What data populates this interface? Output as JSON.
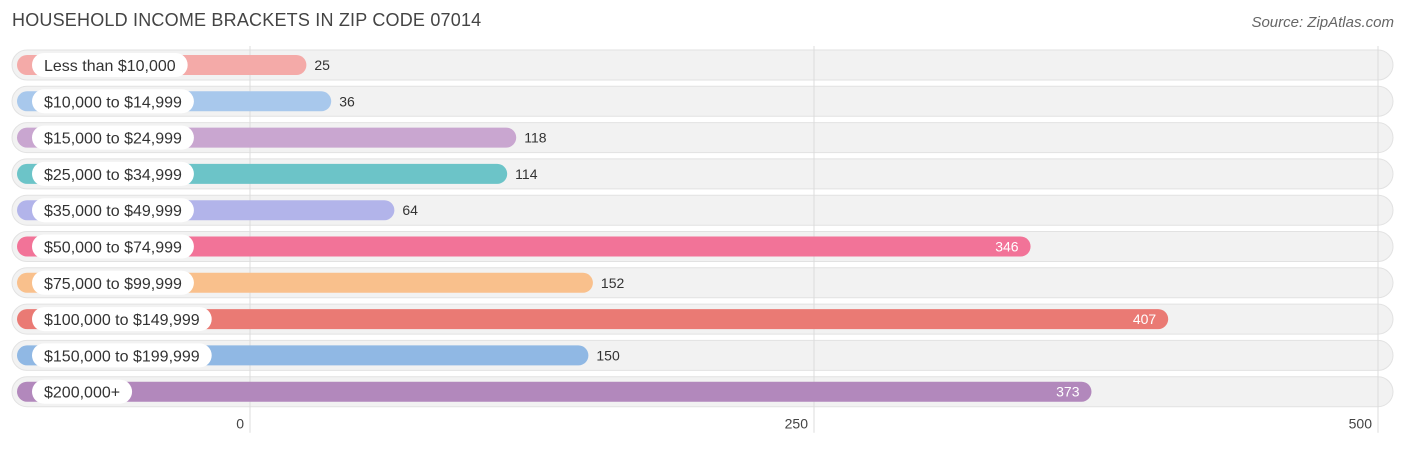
{
  "title": "HOUSEHOLD INCOME BRACKETS IN ZIP CODE 07014",
  "source": "Source: ZipAtlas.com",
  "chart_data": {
    "type": "bar",
    "orientation": "horizontal",
    "title": "HOUSEHOLD INCOME BRACKETS IN ZIP CODE 07014",
    "xlabel": "",
    "ylabel": "",
    "xlim": [
      0,
      500
    ],
    "ticks": [
      0,
      250,
      500
    ],
    "tick_labels": [
      "0",
      "250",
      "500"
    ],
    "categories": [
      "Less than $10,000",
      "$10,000 to $14,999",
      "$15,000 to $24,999",
      "$25,000 to $34,999",
      "$35,000 to $49,999",
      "$50,000 to $74,999",
      "$75,000 to $99,999",
      "$100,000 to $149,999",
      "$150,000 to $199,999",
      "$200,000+"
    ],
    "values": [
      25,
      36,
      118,
      114,
      64,
      346,
      152,
      407,
      150,
      373
    ],
    "value_labels": [
      "25",
      "36",
      "118",
      "114",
      "64",
      "346",
      "152",
      "407",
      "150",
      "373"
    ],
    "colors": [
      "#f4aaa8",
      "#a8c8ec",
      "#c9a6d0",
      "#6cc4c8",
      "#b2b4ea",
      "#f27398",
      "#f9c08c",
      "#ea7a74",
      "#90b8e4",
      "#b288bc"
    ]
  }
}
